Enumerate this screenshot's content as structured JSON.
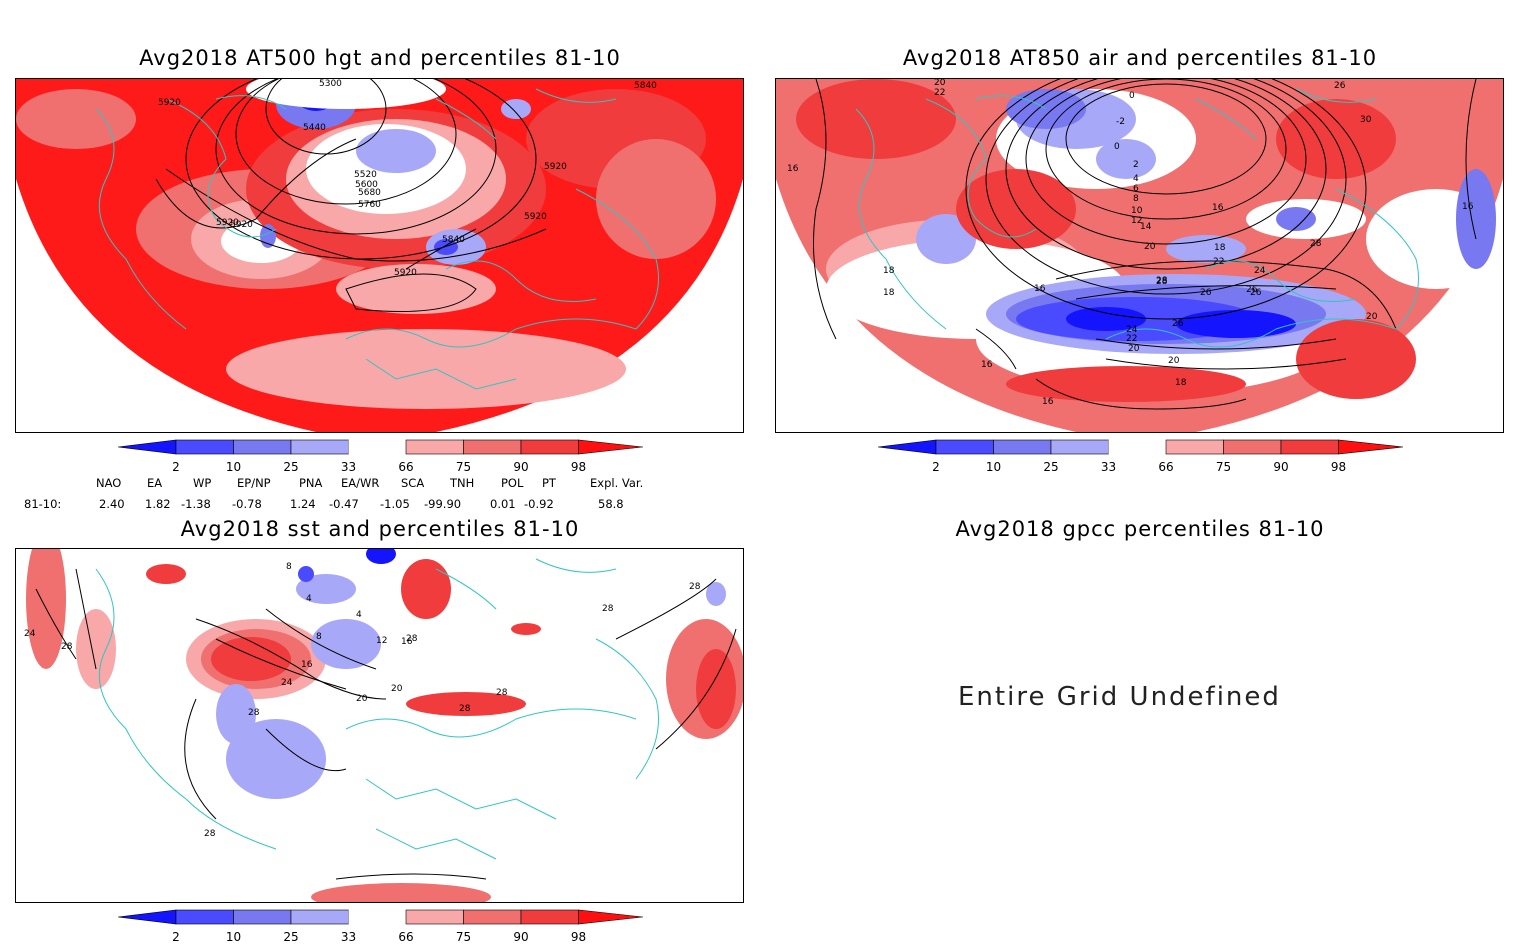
{
  "panels": [
    {
      "id": "at500",
      "title": "Avg2018 AT500 hgt and percentiles 81-10",
      "contour_labels": [
        "5920",
        "5840",
        "5440",
        "5300",
        "5520",
        "5600",
        "5680",
        "5760",
        "5920",
        "5920",
        "5920",
        "5840",
        "5920",
        "5920"
      ]
    },
    {
      "id": "at850",
      "title": "Avg2018 AT850 air and percentiles 81-10",
      "contour_labels": [
        "20",
        "22",
        "0",
        "-2",
        "0",
        "2",
        "4",
        "6",
        "8",
        "10",
        "12",
        "14",
        "16",
        "18",
        "20",
        "22",
        "24",
        "26",
        "28",
        "30",
        "26",
        "16",
        "18",
        "18",
        "16",
        "16",
        "16",
        "18",
        "20",
        "20",
        "22",
        "24",
        "26",
        "28",
        "26",
        "26",
        "28",
        "16",
        "20"
      ]
    },
    {
      "id": "sst",
      "title": "Avg2018 sst and percentiles 81-10",
      "contour_labels": [
        "24",
        "28",
        "8",
        "4",
        "4",
        "8",
        "12",
        "16",
        "16",
        "20",
        "24",
        "28",
        "28",
        "20",
        "28",
        "28",
        "28",
        "28",
        "28"
      ]
    },
    {
      "id": "gpcc",
      "title": "Avg2018 gpcc percentiles 81-10",
      "message": "Entire Grid Undefined"
    }
  ],
  "colorbar": {
    "labels": [
      "2",
      "10",
      "25",
      "33",
      "66",
      "75",
      "90",
      "98"
    ],
    "colors": [
      "#1414ff",
      "#4a4aff",
      "#7878f0",
      "#a8a8f8",
      "#ffffff",
      "#f8a8a8",
      "#f07070",
      "#f03c3c",
      "#ff1010"
    ]
  },
  "indices": {
    "headers": [
      "NAO",
      "EA",
      "WP",
      "EP/NP",
      "PNA",
      "EA/WR",
      "SCA",
      "TNH",
      "POL",
      "PT",
      "Expl. Var."
    ],
    "row_label": "81-10:",
    "values": [
      "2.40",
      "1.82",
      "-1.38",
      "-0.78",
      "1.24",
      "-0.47",
      "-1.05",
      "-99.90",
      "0.01",
      "-0.92",
      "58.8"
    ]
  },
  "colors": {
    "coastline": "#33c4c4",
    "contour": "#000000",
    "border": "#000000"
  }
}
